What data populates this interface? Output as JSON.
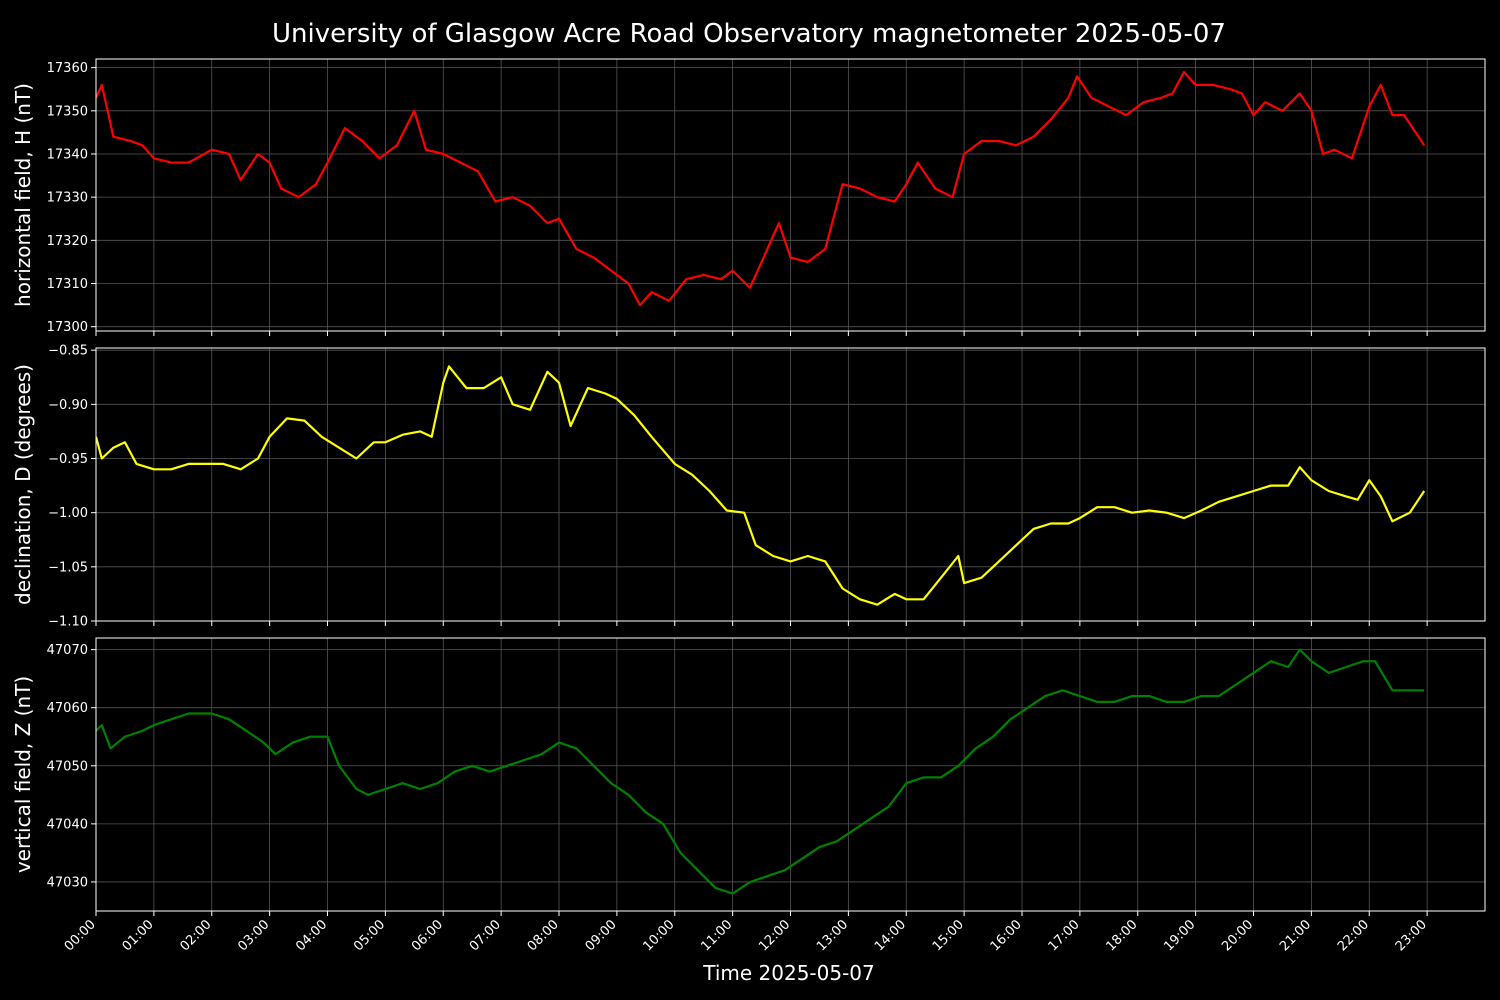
{
  "figure": {
    "title": "University of Glasgow Acre Road Observatory magnetometer 2025-05-07",
    "xlabel": "Time 2025-05-07",
    "x_tick_labels": [
      "00:00",
      "01:00",
      "02:00",
      "03:00",
      "04:00",
      "05:00",
      "06:00",
      "07:00",
      "08:00",
      "09:00",
      "10:00",
      "11:00",
      "12:00",
      "13:00",
      "14:00",
      "15:00",
      "16:00",
      "17:00",
      "18:00",
      "19:00",
      "20:00",
      "21:00",
      "22:00",
      "23:00"
    ],
    "background": "#000000"
  },
  "chart_data": [
    {
      "type": "line",
      "ylabel": "horizontal field, H (nT)",
      "color": "#ff0000",
      "xlim": [
        0,
        24
      ],
      "ylim": [
        17299,
        17362
      ],
      "yticks": [
        17300,
        17310,
        17320,
        17330,
        17340,
        17350,
        17360
      ],
      "ytick_labels": [
        "17300",
        "17310",
        "17320",
        "17330",
        "17340",
        "17350",
        "17360"
      ],
      "grid": true,
      "series": [
        {
          "x": [
            0,
            0.1,
            0.3,
            0.6,
            0.8,
            1.0,
            1.3,
            1.6,
            2.0,
            2.3,
            2.5,
            2.8,
            3.0,
            3.2,
            3.5,
            3.8,
            4.0,
            4.3,
            4.6,
            4.9,
            5.2,
            5.5,
            5.7,
            6.0,
            6.3,
            6.6,
            6.9,
            7.2,
            7.5,
            7.8,
            8.0,
            8.3,
            8.6,
            8.9,
            9.2,
            9.4,
            9.6,
            9.9,
            10.2,
            10.5,
            10.8,
            11.0,
            11.3,
            11.6,
            11.8,
            12.0,
            12.3,
            12.6,
            12.9,
            13.2,
            13.5,
            13.8,
            14.0,
            14.2,
            14.5,
            14.8,
            15.0,
            15.3,
            15.6,
            15.9,
            16.2,
            16.5,
            16.8,
            16.95,
            17.2,
            17.5,
            17.8,
            18.1,
            18.4,
            18.6,
            18.8,
            19.0,
            19.3,
            19.6,
            19.8,
            20.0,
            20.2,
            20.5,
            20.8,
            21.0,
            21.2,
            21.4,
            21.7,
            22.0,
            22.2,
            22.4,
            22.6,
            22.8,
            22.95
          ],
          "y": [
            17353,
            17356,
            17344,
            17343,
            17342,
            17339,
            17338,
            17338,
            17341,
            17340,
            17334,
            17340,
            17338,
            17332,
            17330,
            17333,
            17338,
            17346,
            17343,
            17339,
            17342,
            17350,
            17341,
            17340,
            17338,
            17336,
            17329,
            17330,
            17328,
            17324,
            17325,
            17318,
            17316,
            17313,
            17310,
            17305,
            17308,
            17306,
            17311,
            17312,
            17311,
            17313,
            17309,
            17318,
            17324,
            17316,
            17315,
            17318,
            17333,
            17332,
            17330,
            17329,
            17333,
            17338,
            17332,
            17330,
            17340,
            17343,
            17343,
            17342,
            17344,
            17348,
            17353,
            17358,
            17353,
            17351,
            17349,
            17352,
            17353,
            17354,
            17359,
            17356,
            17356,
            17355,
            17354,
            17349,
            17352,
            17350,
            17354,
            17350,
            17340,
            17341,
            17339,
            17351,
            17356,
            17349,
            17349,
            17345,
            17342
          ]
        }
      ]
    },
    {
      "type": "line",
      "ylabel": "declination, D (degrees)",
      "color": "#ffff00",
      "xlim": [
        0,
        24
      ],
      "ylim": [
        -1.1,
        -0.848
      ],
      "yticks": [
        -1.1,
        -1.05,
        -1.0,
        -0.95,
        -0.9,
        -0.85
      ],
      "ytick_labels": [
        "−1.10",
        "−1.05",
        "−1.00",
        "−0.95",
        "−0.90",
        "−0.85"
      ],
      "grid": true,
      "series": [
        {
          "x": [
            0,
            0.1,
            0.3,
            0.5,
            0.7,
            1.0,
            1.3,
            1.6,
            1.9,
            2.2,
            2.5,
            2.8,
            3.0,
            3.3,
            3.6,
            3.9,
            4.2,
            4.5,
            4.8,
            5.0,
            5.3,
            5.6,
            5.8,
            6.0,
            6.1,
            6.4,
            6.7,
            7.0,
            7.2,
            7.5,
            7.8,
            8.0,
            8.2,
            8.5,
            8.8,
            9.0,
            9.3,
            9.6,
            10.0,
            10.3,
            10.6,
            10.9,
            11.2,
            11.4,
            11.7,
            12.0,
            12.3,
            12.6,
            12.9,
            13.2,
            13.5,
            13.8,
            14.0,
            14.3,
            14.6,
            14.9,
            15.0,
            15.3,
            15.6,
            15.9,
            16.2,
            16.5,
            16.8,
            17.0,
            17.3,
            17.6,
            17.9,
            18.2,
            18.5,
            18.8,
            19.1,
            19.4,
            19.7,
            20.0,
            20.3,
            20.6,
            20.8,
            21.0,
            21.3,
            21.6,
            21.8,
            22.0,
            22.2,
            22.4,
            22.7,
            22.95
          ],
          "y": [
            -0.93,
            -0.95,
            -0.94,
            -0.935,
            -0.955,
            -0.96,
            -0.96,
            -0.955,
            -0.955,
            -0.955,
            -0.96,
            -0.95,
            -0.93,
            -0.913,
            -0.915,
            -0.93,
            -0.94,
            -0.95,
            -0.935,
            -0.935,
            -0.928,
            -0.925,
            -0.93,
            -0.88,
            -0.865,
            -0.885,
            -0.885,
            -0.875,
            -0.9,
            -0.905,
            -0.87,
            -0.88,
            -0.92,
            -0.885,
            -0.89,
            -0.895,
            -0.91,
            -0.93,
            -0.955,
            -0.965,
            -0.98,
            -0.998,
            -1.0,
            -1.03,
            -1.04,
            -1.045,
            -1.04,
            -1.045,
            -1.07,
            -1.08,
            -1.085,
            -1.075,
            -1.08,
            -1.08,
            -1.06,
            -1.04,
            -1.065,
            -1.06,
            -1.045,
            -1.03,
            -1.015,
            -1.01,
            -1.01,
            -1.005,
            -0.995,
            -0.995,
            -1.0,
            -0.998,
            -1.0,
            -1.005,
            -0.998,
            -0.99,
            -0.985,
            -0.98,
            -0.975,
            -0.975,
            -0.958,
            -0.97,
            -0.98,
            -0.985,
            -0.988,
            -0.97,
            -0.985,
            -1.008,
            -1.0,
            -0.98
          ]
        }
      ]
    },
    {
      "type": "line",
      "ylabel": "vertical field, Z (nT)",
      "color": "#008000",
      "xlim": [
        0,
        24
      ],
      "ylim": [
        47025,
        47072
      ],
      "yticks": [
        47030,
        47040,
        47050,
        47060,
        47070
      ],
      "ytick_labels": [
        "47030",
        "47040",
        "47050",
        "47060",
        "47070"
      ],
      "grid": true,
      "series": [
        {
          "x": [
            0,
            0.1,
            0.25,
            0.5,
            0.8,
            1.0,
            1.3,
            1.6,
            1.9,
            2.0,
            2.3,
            2.6,
            2.9,
            3.1,
            3.4,
            3.7,
            4.0,
            4.2,
            4.5,
            4.7,
            5.0,
            5.3,
            5.6,
            5.9,
            6.2,
            6.5,
            6.8,
            7.1,
            7.4,
            7.7,
            8.0,
            8.3,
            8.6,
            8.9,
            9.2,
            9.5,
            9.8,
            10.1,
            10.4,
            10.7,
            11.0,
            11.3,
            11.6,
            11.9,
            12.2,
            12.5,
            12.8,
            13.1,
            13.4,
            13.7,
            14.0,
            14.3,
            14.6,
            14.9,
            15.2,
            15.5,
            15.8,
            16.1,
            16.4,
            16.7,
            17.0,
            17.3,
            17.6,
            17.9,
            18.2,
            18.5,
            18.8,
            19.1,
            19.4,
            19.7,
            20.0,
            20.3,
            20.6,
            20.8,
            21.0,
            21.3,
            21.6,
            21.9,
            22.1,
            22.4,
            22.6,
            22.95
          ],
          "y": [
            47056,
            47057,
            47053,
            47055,
            47056,
            47057,
            47058,
            47059,
            47059,
            47059,
            47058,
            47056,
            47054,
            47052,
            47054,
            47055,
            47055,
            47050,
            47046,
            47045,
            47046,
            47047,
            47046,
            47047,
            47049,
            47050,
            47049,
            47050,
            47051,
            47052,
            47054,
            47053,
            47050,
            47047,
            47045,
            47042,
            47040,
            47035,
            47032,
            47029,
            47028,
            47030,
            47031,
            47032,
            47034,
            47036,
            47037,
            47039,
            47041,
            47043,
            47047,
            47048,
            47048,
            47050,
            47053,
            47055,
            47058,
            47060,
            47062,
            47063,
            47062,
            47061,
            47061,
            47062,
            47062,
            47061,
            47061,
            47062,
            47062,
            47064,
            47066,
            47068,
            47067,
            47070,
            47068,
            47066,
            47067,
            47068,
            47068,
            47063,
            47063,
            47063
          ]
        }
      ]
    }
  ]
}
